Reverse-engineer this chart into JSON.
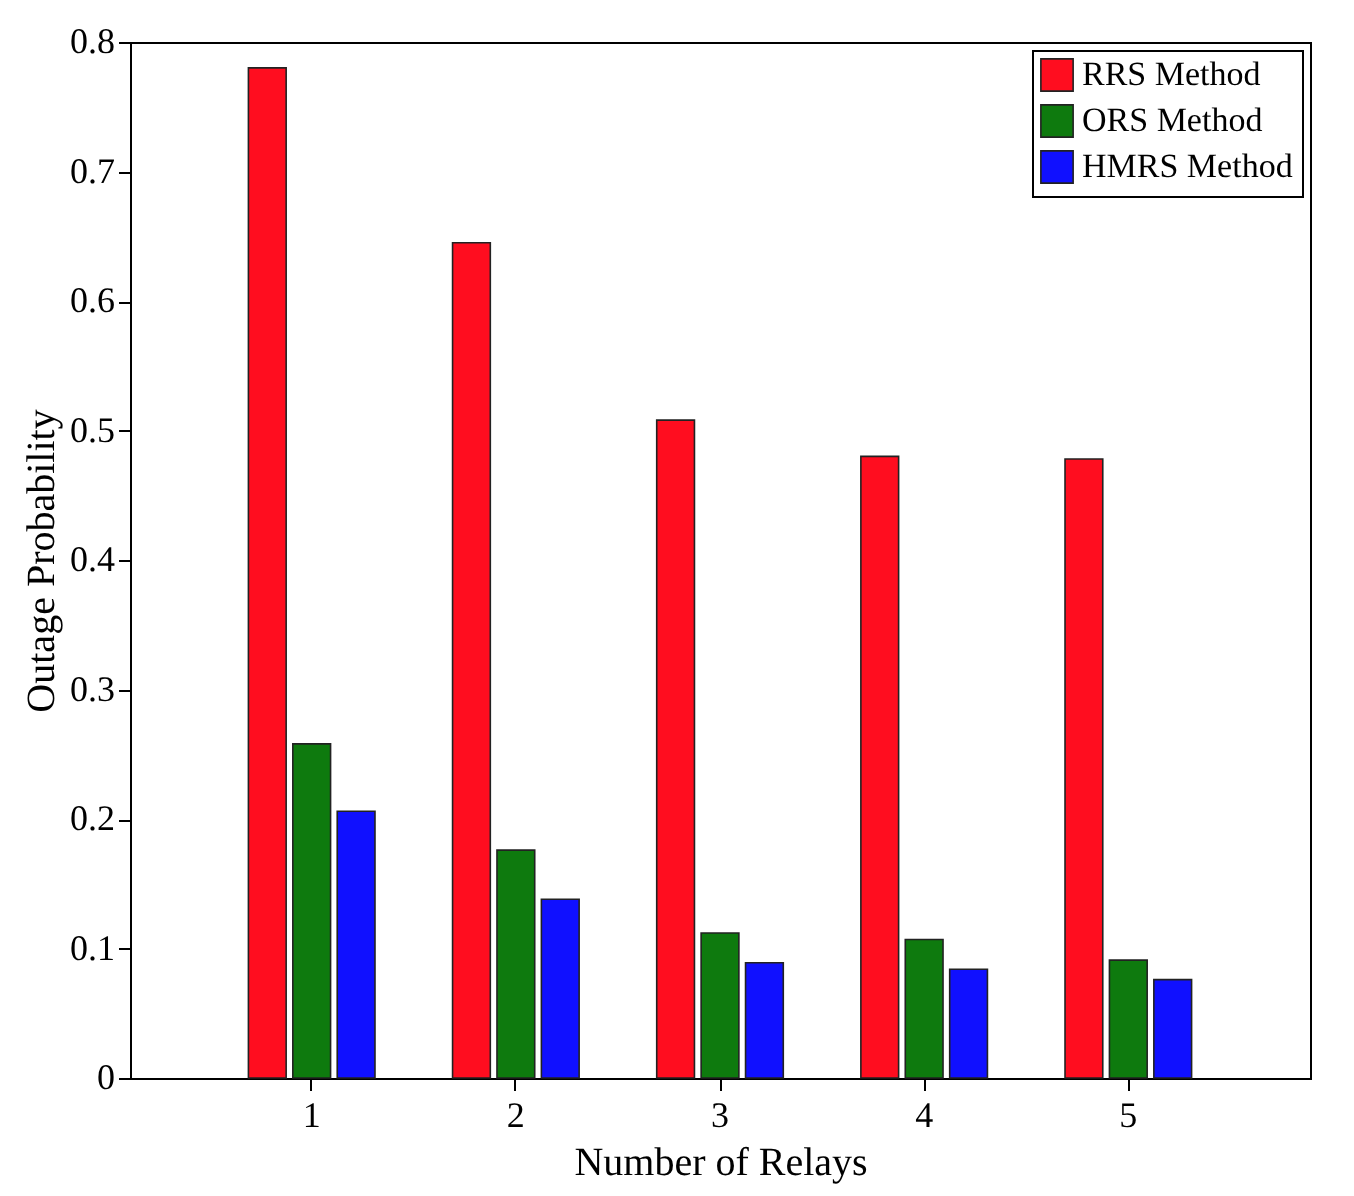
{
  "chart_data": {
    "type": "bar",
    "xlabel": "Number of Relays",
    "ylabel": "Outage Probability",
    "categories": [
      "1",
      "2",
      "3",
      "4",
      "5"
    ],
    "series": [
      {
        "name": "RRS Method",
        "color": "#ff0d1f",
        "values": [
          0.78,
          0.645,
          0.508,
          0.48,
          0.478
        ]
      },
      {
        "name": "ORS Method",
        "color": "#0e7a0e",
        "values": [
          0.258,
          0.176,
          0.112,
          0.107,
          0.091
        ]
      },
      {
        "name": "HMRS Method",
        "color": "#1010ff",
        "values": [
          0.206,
          0.138,
          0.089,
          0.084,
          0.076
        ]
      }
    ],
    "ylim": [
      0,
      0.8
    ],
    "yticks": [
      0,
      0.1,
      0.2,
      0.3,
      0.4,
      0.5,
      0.6,
      0.7,
      0.8
    ],
    "legend": "top right"
  }
}
